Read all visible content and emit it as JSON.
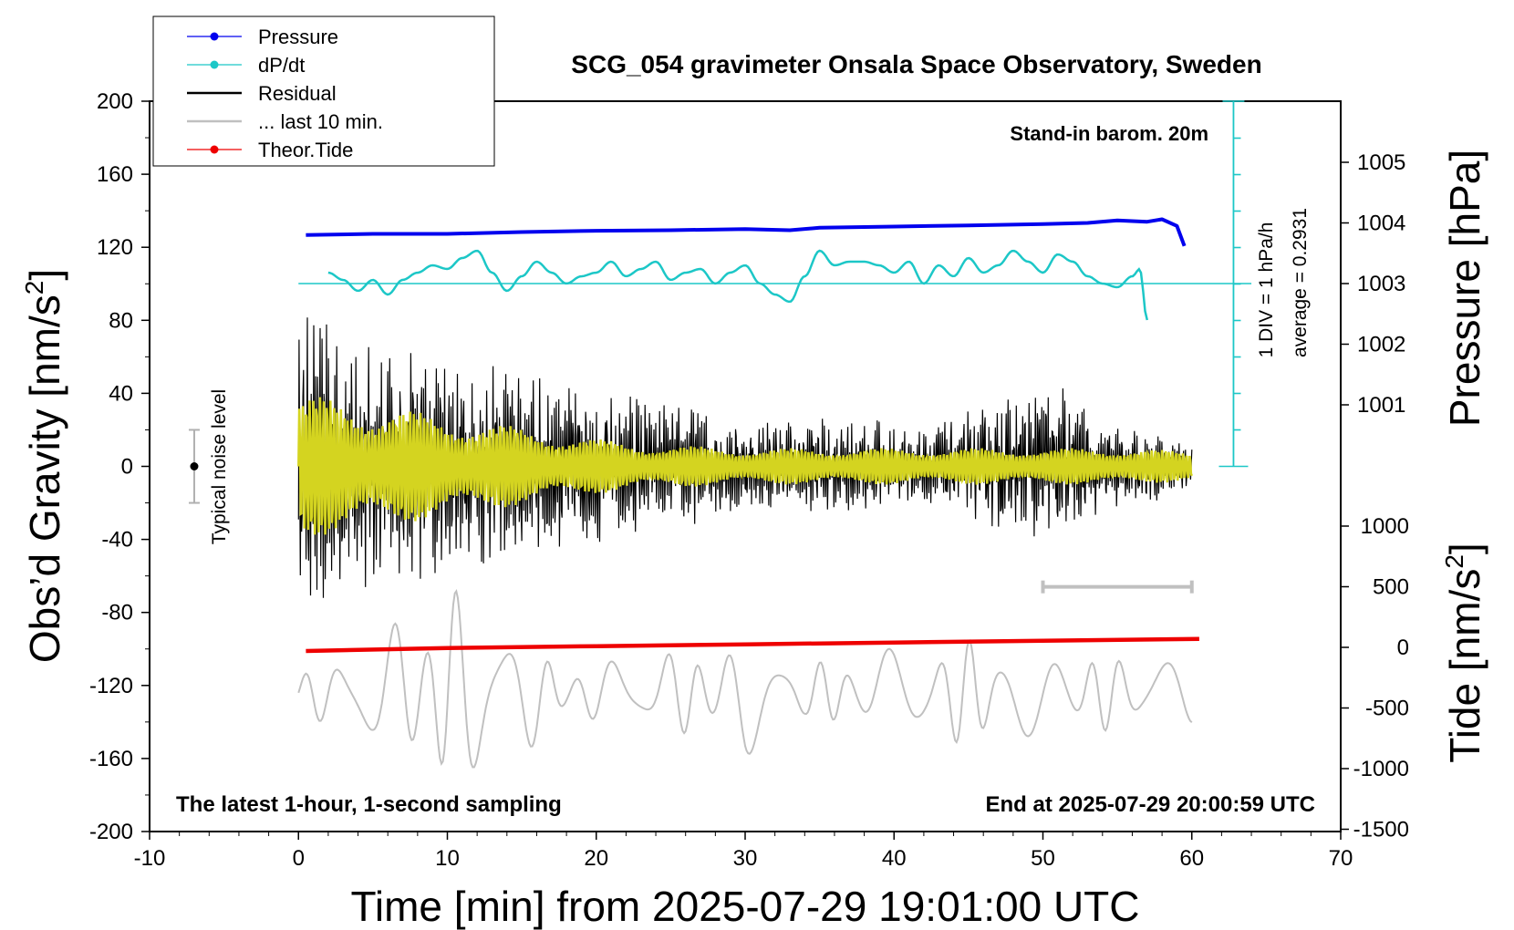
{
  "chart_data": {
    "type": "line",
    "title": "SCG_054 gravimeter Onsala Space Observatory, Sweden",
    "xlabel": "Time [min] from 2025-07-29 19:01:00 UTC",
    "ylabel_left_main": "Obs’d Gravity [nm/s",
    "ylabel_left_sup": "2",
    "ylabel_left_end": "]",
    "ylabel_right_pressure": "Pressure [hPa]",
    "ylabel_right_tide_main": "Tide [nm/s",
    "ylabel_right_tide_sup": "2",
    "ylabel_right_tide_end": "]",
    "xlim": [
      -10,
      70
    ],
    "ylim": [
      -200,
      200
    ],
    "x_ticks": [
      -10,
      0,
      10,
      20,
      30,
      40,
      50,
      60,
      70
    ],
    "y_ticks": [
      -200,
      -160,
      -120,
      -80,
      -40,
      0,
      40,
      80,
      120,
      160,
      200
    ],
    "pressure_ticks": [
      1001,
      1002,
      1003,
      1004,
      1005
    ],
    "tide_ticks": [
      1000,
      500,
      0,
      -500,
      -1000,
      -1500
    ],
    "annotations": {
      "barometer": "Stand-in barom. 20m",
      "div_label": "1 DIV = 1 hPa/h",
      "average": "average = 0.2931",
      "noise_label": "Typical noise level",
      "bottom_left": "The latest 1-hour, 1-second sampling",
      "bottom_right": "End at 2025-07-29 20:00:59 UTC"
    },
    "legend": {
      "placement": "top-left",
      "entries": [
        {
          "label": "Pressure",
          "color": "#0000ee",
          "marker": true
        },
        {
          "label": "dP/dt",
          "color": "#1cc7c7",
          "marker": true
        },
        {
          "label": "Residual",
          "color": "#000000",
          "marker": false
        },
        {
          "label": "... last 10 min.",
          "color": "#c0c0c0",
          "marker": false
        },
        {
          "label": "Theor.Tide",
          "color": "#ee0000",
          "marker": true
        }
      ]
    },
    "series": [
      {
        "name": "Pressure",
        "color": "#0000ee",
        "axis": "pressure_hPa",
        "x": [
          0.5,
          5,
          10,
          15,
          20,
          25,
          30,
          33,
          35,
          40,
          45,
          50,
          53,
          55,
          57,
          58,
          59,
          59.5
        ],
        "values": [
          1003.8,
          1003.82,
          1003.82,
          1003.85,
          1003.87,
          1003.88,
          1003.9,
          1003.88,
          1003.92,
          1003.94,
          1003.96,
          1003.98,
          1004.0,
          1004.04,
          1004.02,
          1004.06,
          1003.95,
          1003.62
        ]
      },
      {
        "name": "dP/dt",
        "color": "#1cc7c7",
        "axis": "dPdt_hPa_per_h",
        "x": [
          2,
          3,
          4,
          5,
          6,
          7,
          8,
          9,
          10,
          11,
          12,
          13,
          14,
          15,
          16,
          17,
          18,
          19,
          20,
          21,
          22,
          23,
          24,
          25,
          26,
          27,
          28,
          29,
          30,
          31,
          32,
          33,
          34,
          35,
          36,
          37,
          38,
          39,
          40,
          41,
          42,
          43,
          44,
          45,
          46,
          47,
          48,
          49,
          50,
          51,
          52,
          53,
          54,
          55,
          56,
          56.5,
          57
        ],
        "values": [
          0.3,
          0.1,
          -0.2,
          0.1,
          -0.3,
          0.1,
          0.3,
          0.5,
          0.4,
          0.7,
          0.9,
          0.3,
          -0.2,
          0.2,
          0.6,
          0.3,
          0.0,
          0.2,
          0.3,
          0.6,
          0.2,
          0.4,
          0.6,
          0.1,
          0.3,
          0.4,
          0.0,
          0.3,
          0.5,
          0.0,
          -0.3,
          -0.5,
          0.2,
          0.9,
          0.5,
          0.6,
          0.6,
          0.5,
          0.3,
          0.6,
          0.0,
          0.5,
          0.2,
          0.7,
          0.3,
          0.5,
          0.9,
          0.6,
          0.3,
          0.8,
          0.6,
          0.2,
          0.0,
          -0.1,
          0.2,
          0.4,
          -1.0
        ]
      },
      {
        "name": "Residual",
        "color": "#000000",
        "axis": "gravity",
        "envelope": [
          80,
          75,
          60,
          60,
          55,
          50,
          45,
          40,
          35,
          30,
          25,
          25,
          25,
          25,
          20,
          30,
          45,
          25,
          20,
          12
        ],
        "envelope_x": [
          0,
          3,
          6,
          9,
          12,
          15,
          18,
          21,
          24,
          27,
          30,
          33,
          36,
          39,
          42,
          45,
          51,
          54,
          57,
          60
        ]
      },
      {
        "name": "... last 10 min.",
        "color": "#c0c0c0",
        "axis": "gravity",
        "x_range": [
          0,
          60
        ],
        "baseline": -124,
        "envelope": [
          10,
          30,
          50,
          60,
          40,
          15,
          25,
          35,
          15,
          25,
          30,
          25,
          20,
          20
        ],
        "envelope_x": [
          0,
          5,
          8,
          10,
          14,
          18,
          27,
          30,
          34,
          40,
          45,
          50,
          55,
          60
        ]
      },
      {
        "name": "Theor.Tide",
        "color": "#ee0000",
        "axis": "tide_nm_s2",
        "x": [
          0.5,
          10,
          20,
          30,
          40,
          50,
          60.5
        ],
        "values": [
          -30,
          -5,
          10,
          25,
          40,
          55,
          70
        ]
      },
      {
        "name": "yellow-overlay",
        "color": "#d4d420",
        "axis": "gravity",
        "envelope": [
          40,
          35,
          30,
          25,
          20,
          15,
          12,
          10,
          10,
          10,
          10,
          10,
          10,
          8
        ],
        "envelope_x": [
          0,
          4,
          8,
          12,
          16,
          20,
          24,
          30,
          36,
          42,
          48,
          52,
          56,
          60
        ]
      }
    ],
    "noise_bar": {
      "x": -7,
      "center": 0,
      "range": [
        -20,
        20
      ]
    },
    "scale_bar": {
      "x": [
        50,
        60
      ],
      "y": -66
    },
    "dPdt_baseline_hPa_per_h": 0.0
  }
}
